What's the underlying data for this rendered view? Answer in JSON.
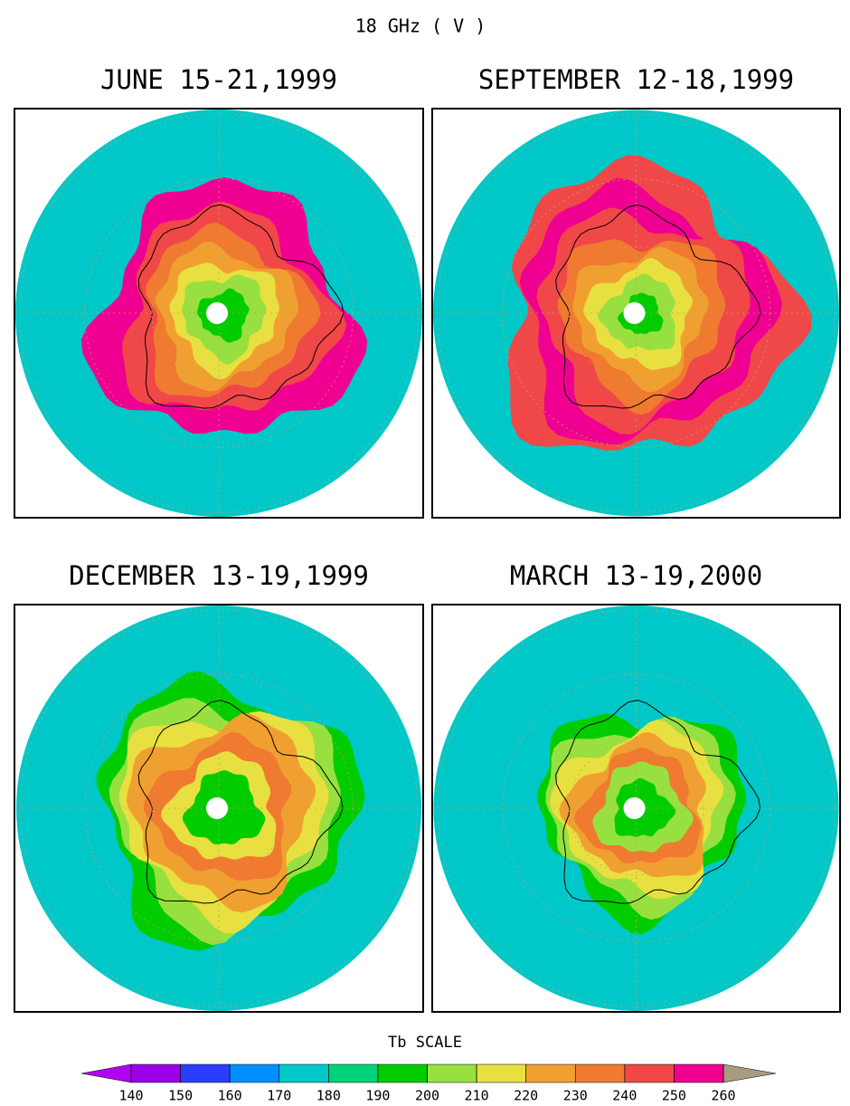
{
  "title": "18 GHz ( V )",
  "panels": [
    {
      "title": "JUNE 15-21,1999"
    },
    {
      "title": "SEPTEMBER 12-18,1999"
    },
    {
      "title": "DECEMBER 13-19,1999"
    },
    {
      "title": "MARCH 13-19,2000"
    }
  ],
  "colorbar": {
    "label": "Tb SCALE",
    "ticks": [
      140,
      150,
      160,
      170,
      180,
      190,
      200,
      210,
      220,
      230,
      240,
      250,
      260
    ],
    "colors": [
      "#9a00e6",
      "#2a3cff",
      "#0090ff",
      "#00c8c8",
      "#00d27a",
      "#00cc00",
      "#98e040",
      "#e8e040",
      "#f0a030",
      "#f07a30",
      "#f04848",
      "#f00090"
    ],
    "under_color": "#b000f0",
    "over_color": "#a89c80"
  }
}
